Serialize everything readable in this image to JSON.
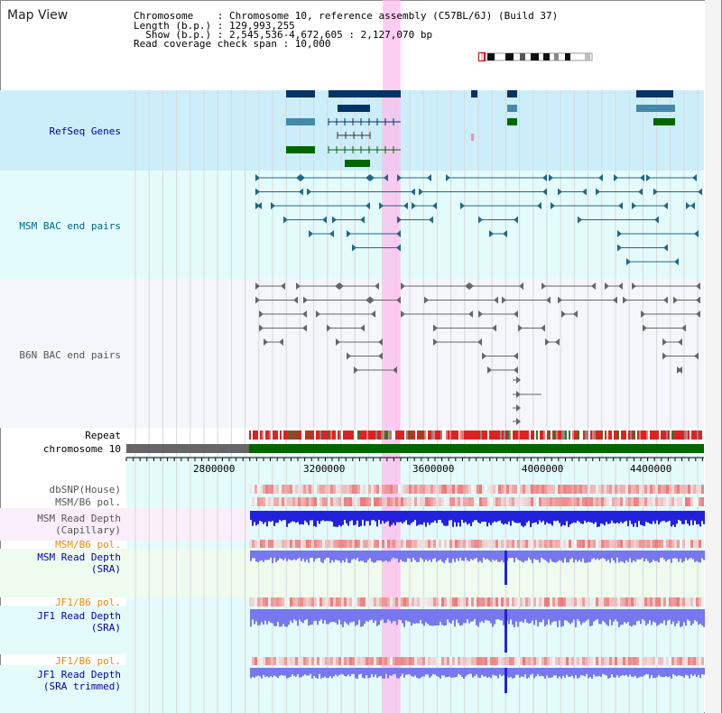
{
  "title": "Map View",
  "info": {
    "chromosome_line": "Chromosome    : Chromosome 10, reference assembly (C57BL/6J) (Build 37)",
    "length_line": "Length (b.p.) : 129,993,255",
    "show_line": "  Show (b.p.) : 2,545,536-4,672,605 : 2,127,070 bp",
    "coverage_line": "Read coverage check span : 10,000"
  },
  "tracks": {
    "refseq": "RefSeq Genes",
    "msm_bac": "MSM BAC end pairs",
    "b6n_bac": "B6N BAC end pairs",
    "repeat": "Repeat",
    "chromosome": "chromosome 10",
    "dbsnp": "dbSNP(House)",
    "msm_b6_pol_1": "MSM/B6 pol.",
    "msm_read_depth_cap_1": "MSM Read Depth",
    "msm_read_depth_cap_2": "(Capillary)",
    "msm_b6_pol_2": "MSM/B6 pol.",
    "msm_read_depth_sra_1": "MSM Read Depth",
    "msm_read_depth_sra_2": "(SRA)",
    "jf1_b6_pol_1": "JF1/B6 pol.",
    "jf1_read_depth_sra_1": "JF1 Read Depth",
    "jf1_read_depth_sra_2": "(SRA)",
    "jf1_b6_pol_2": "JF1/B6 pol.",
    "jf1_read_depth_trim_1": "JF1 Read Depth",
    "jf1_read_depth_trim_2": "(SRA trimmed)"
  },
  "axis": {
    "ticks": [
      "2800000",
      "3200000",
      "3600000",
      "4000000",
      "4400000"
    ],
    "view_start": 2545536,
    "view_end": 4672605
  },
  "highlight_region": {
    "start": 3490000,
    "end": 3555000
  },
  "colors": {
    "label_blue": "#0000aa",
    "label_teal": "#006688",
    "label_gray": "#555555",
    "label_orange": "#ee8800",
    "refseq_dark": "#003366",
    "refseq_light": "#4488aa",
    "refseq_green": "#006600",
    "msm_bac": "#226688",
    "b6n_bac": "#666666",
    "chrom_green": "#006600",
    "depth_blue": "#2222dd",
    "depth_light": "#7777ee",
    "pol_red": "#ee3333",
    "highlight": "#ffbbee"
  }
}
